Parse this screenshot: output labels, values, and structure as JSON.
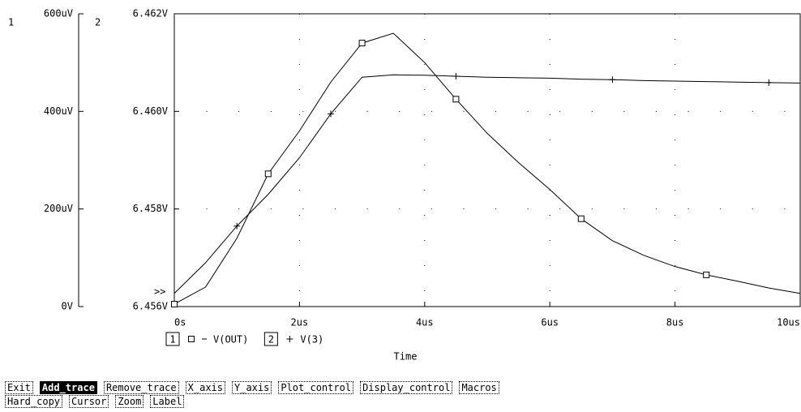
{
  "chart_data": {
    "type": "line",
    "y_axis_label": "1",
    "y2_axis_label": "2",
    "xlabel": "Time",
    "marker_text": ">>",
    "x": [
      0,
      0.5,
      1,
      1.5,
      2,
      2.5,
      3,
      3.5,
      4,
      4.5,
      5,
      5.5,
      6,
      6.5,
      7,
      7.5,
      8,
      8.5,
      9,
      9.5,
      10
    ],
    "series": [
      {
        "name": "V(OUT)",
        "color": "#000000",
        "marker": "square",
        "values": [
          5,
          40,
          140,
          272,
          360,
          460,
          540,
          560,
          500,
          425,
          355,
          295,
          240,
          180,
          135,
          105,
          82,
          65,
          52,
          38,
          27
        ]
      },
      {
        "name": "V(3)",
        "color": "#000000",
        "marker": "plus",
        "axis": "y2",
        "values": [
          6.45627,
          6.4569,
          6.45765,
          6.4583,
          6.45905,
          6.45995,
          6.4607,
          6.46075,
          6.46074,
          6.46072,
          6.4607,
          6.46069,
          6.46068,
          6.46066,
          6.46065,
          6.46063,
          6.46062,
          6.46061,
          6.4606,
          6.46059,
          6.46058
        ]
      }
    ],
    "xlim": [
      0,
      10
    ],
    "xticks": [
      {
        "value": 0,
        "label": "0s"
      },
      {
        "value": 2,
        "label": "2us"
      },
      {
        "value": 4,
        "label": "4us"
      },
      {
        "value": 6,
        "label": "6us"
      },
      {
        "value": 8,
        "label": "8us"
      },
      {
        "value": 10,
        "label": "10us"
      }
    ],
    "ylim": [
      0,
      600
    ],
    "yticks": [
      {
        "value": 0,
        "label": "0V"
      },
      {
        "value": 200,
        "label": "200uV"
      },
      {
        "value": 400,
        "label": "400uV"
      },
      {
        "value": 600,
        "label": "600uV"
      }
    ],
    "y2lim": [
      6.456,
      6.462
    ],
    "y2ticks": [
      {
        "value": 6.456,
        "label": "6.456V"
      },
      {
        "value": 6.458,
        "label": "6.458V"
      },
      {
        "value": 6.46,
        "label": "6.460V"
      },
      {
        "value": 6.462,
        "label": "6.462V"
      }
    ],
    "grid": true
  },
  "menu": [
    [
      "Exit",
      "Add_trace",
      "Remove_trace",
      "X_axis",
      "Y_axis",
      "Plot_control",
      "Display_control",
      "Macros"
    ],
    [
      "Hard_copy",
      "Cursor",
      "Zoom",
      "Label"
    ]
  ]
}
